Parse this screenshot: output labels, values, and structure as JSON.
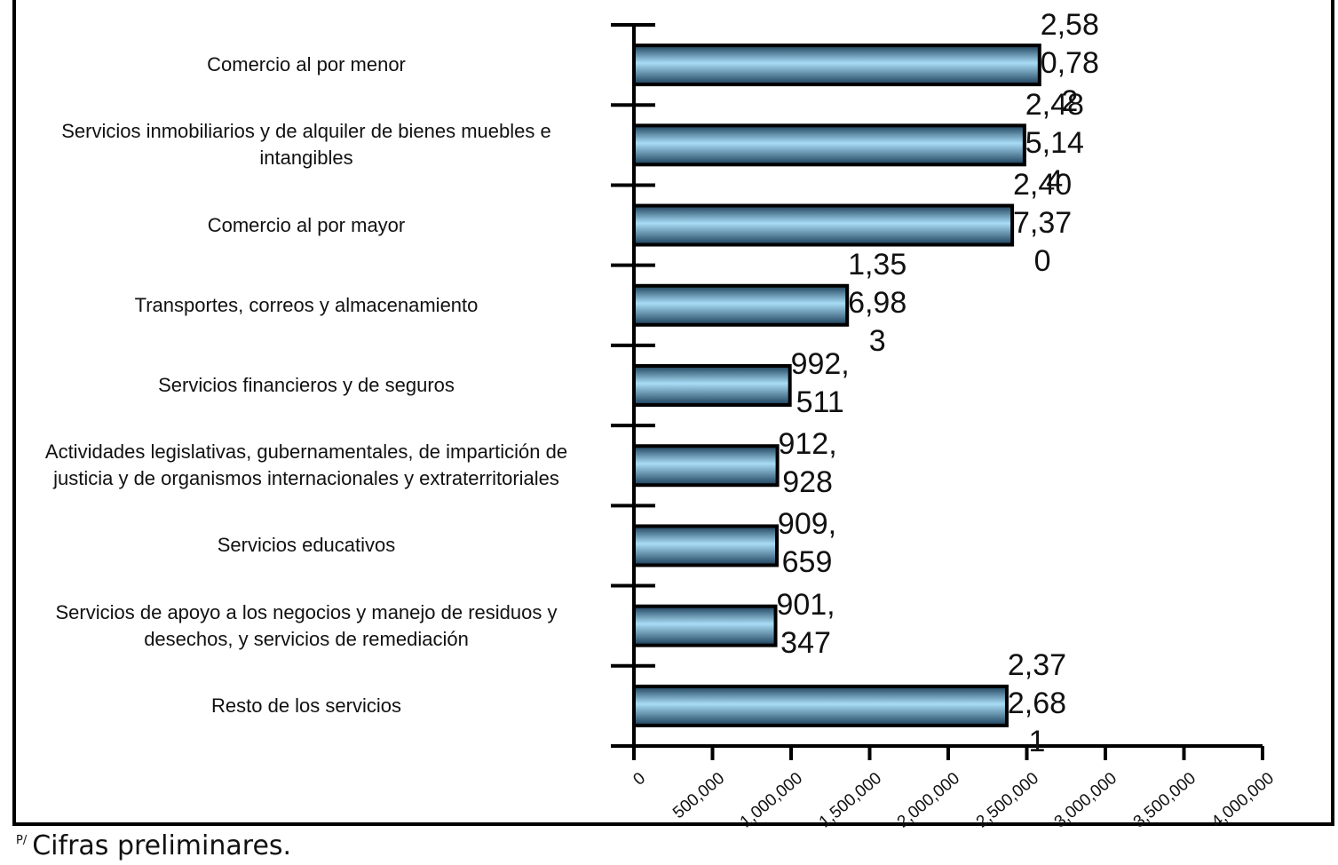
{
  "chart_data": {
    "type": "barh",
    "categories": [
      "Comercio al por menor",
      "Servicios inmobiliarios y de alquiler de bienes muebles e intangibles",
      "Comercio al por mayor",
      "Transportes, correos y almacenamiento",
      "Servicios financieros y de seguros",
      "Actividades legislativas, gubernamentales, de impartición de justicia y de organismos internacionales y extraterritoriales",
      "Servicios educativos",
      "Servicios de apoyo a los negocios y manejo de residuos y desechos, y servicios de remediación",
      "Resto de los servicios"
    ],
    "values": [
      2580782,
      2485144,
      2407370,
      1356983,
      992511,
      912928,
      909659,
      901347,
      2372681
    ],
    "value_labels": [
      "2,580,782",
      "2,485,144",
      "2,407,370",
      "1,356,983",
      "992,511",
      "912,928",
      "909,659",
      "901,347",
      "2,372,681"
    ],
    "color": "#5aaedc",
    "xlim": [
      0,
      4000000
    ],
    "xticks": [
      0,
      {
        "value": 500000,
        "label": "500,000"
      },
      {
        "value": 1000000,
        "label": "1,000,000"
      },
      {
        "value": 1500000,
        "label": "1,500,000"
      },
      {
        "value": 2000000,
        "label": "2,000,000"
      },
      {
        "value": 2500000,
        "label": "2,500,000"
      },
      {
        "value": 3000000,
        "label": "3,000,000"
      },
      {
        "value": 3500000,
        "label": "3,500,000"
      },
      {
        "value": 4000000,
        "label": "4,000,000"
      }
    ],
    "footnote": {
      "mark": "P/",
      "text": "Cifras preliminares."
    }
  }
}
